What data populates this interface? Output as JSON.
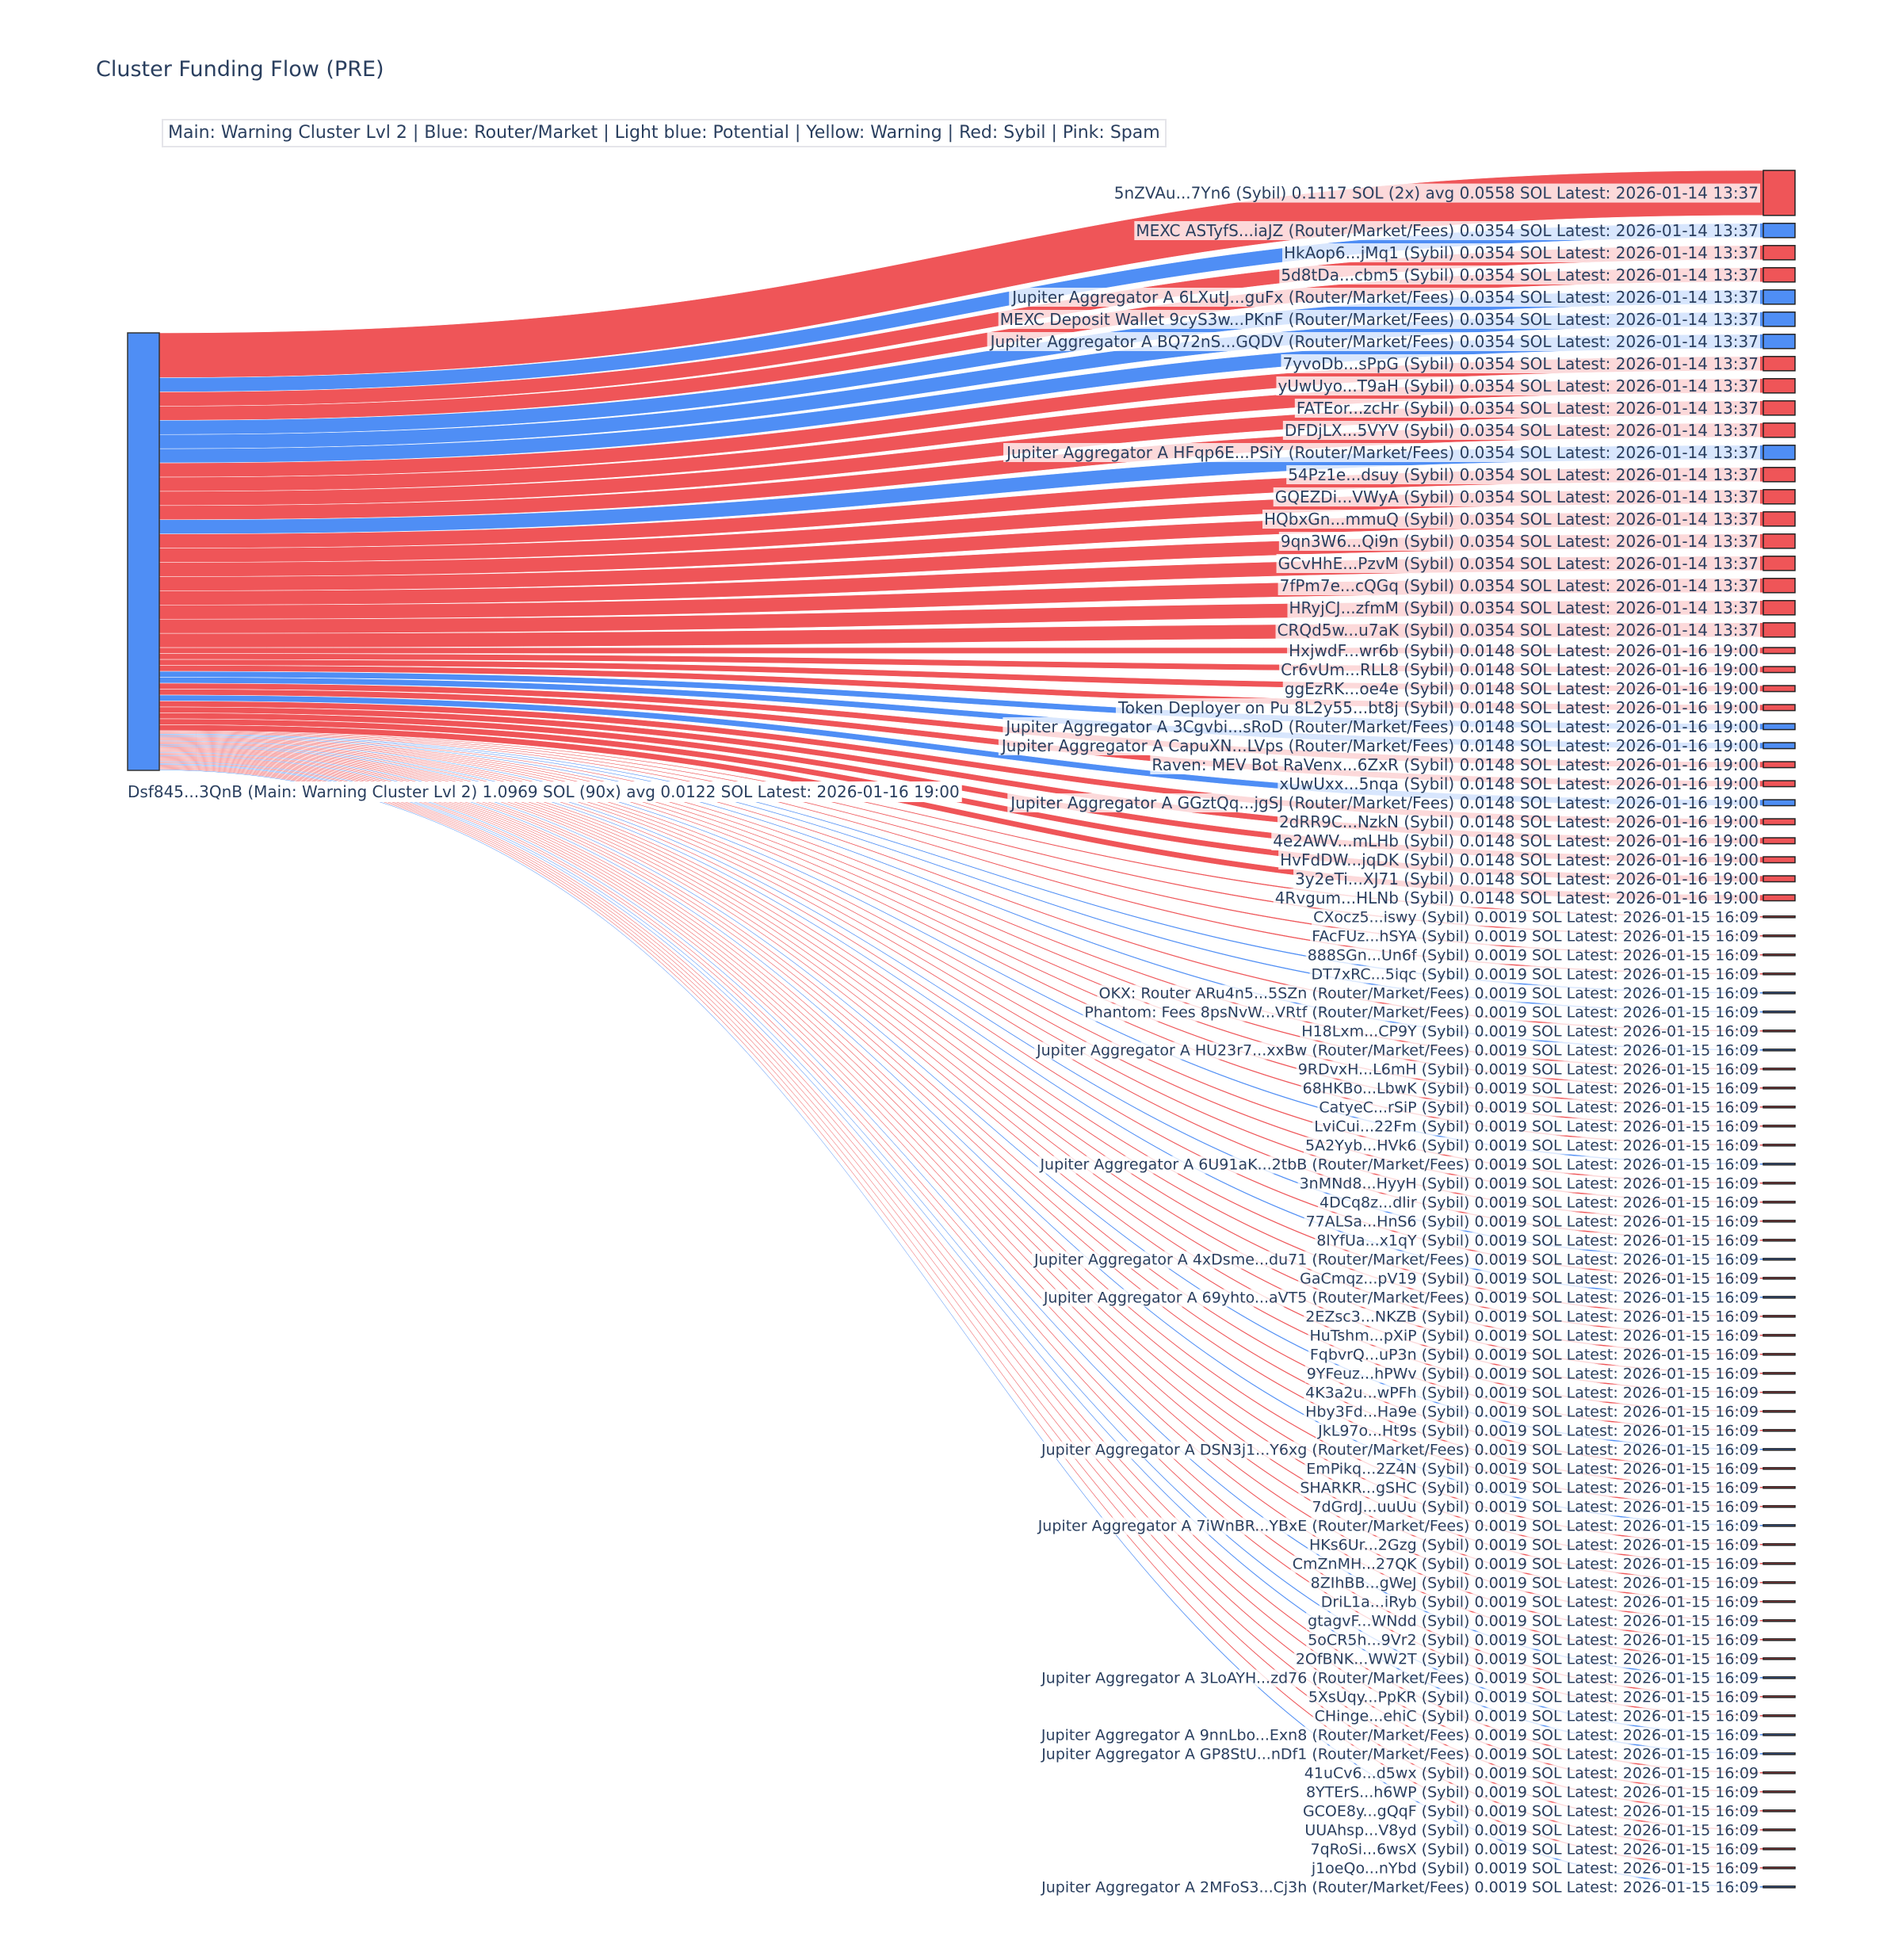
{
  "title": "Cluster Funding Flow (PRE)",
  "legend": "Main: Warning Cluster Lvl 2  |  Blue: Router/Market | Light blue: Potential | Yellow: Warning | Red: Sybil | Pink: Spam",
  "colors": {
    "router": "#4f8ef5",
    "sybil": "#ef5558",
    "main": "#4f8ef5",
    "label": "#2a3f5f"
  },
  "chart_data": {
    "type": "sankey",
    "title": "Cluster Funding Flow (PRE)",
    "source": {
      "name": "Dsf845...3QnB",
      "category": "Main: Warning Cluster Lvl 2",
      "label": "Dsf845...3QnB (Main: Warning Cluster Lvl 2) 1.0969 SOL (90x) avg 0.0122 SOL Latest: 2026-01-16 19:00",
      "total_sol": 1.0969,
      "count": 90,
      "avg_sol": 0.0122,
      "latest": "2026-01-16 19:00"
    },
    "targets": [
      {
        "label": "5nZVAu...7Yn6 (Sybil) 0.1117 SOL (2x) avg 0.0558 SOL Latest: 2026-01-14 13:37",
        "value": 0.1117,
        "type": "sybil"
      },
      {
        "label": "MEXC ASTyfS...iaJZ (Router/Market/Fees) 0.0354 SOL Latest: 2026-01-14 13:37",
        "value": 0.0354,
        "type": "router"
      },
      {
        "label": "HkAop6...jMq1 (Sybil) 0.0354 SOL Latest: 2026-01-14 13:37",
        "value": 0.0354,
        "type": "sybil"
      },
      {
        "label": "5d8tDa...cbm5 (Sybil) 0.0354 SOL Latest: 2026-01-14 13:37",
        "value": 0.0354,
        "type": "sybil"
      },
      {
        "label": "Jupiter Aggregator A 6LXutJ...guFx (Router/Market/Fees) 0.0354 SOL Latest: 2026-01-14 13:37",
        "value": 0.0354,
        "type": "router"
      },
      {
        "label": "MEXC Deposit Wallet 9cyS3w...PKnF (Router/Market/Fees) 0.0354 SOL Latest: 2026-01-14 13:37",
        "value": 0.0354,
        "type": "router"
      },
      {
        "label": "Jupiter Aggregator A BQ72nS...GQDV (Router/Market/Fees) 0.0354 SOL Latest: 2026-01-14 13:37",
        "value": 0.0354,
        "type": "router"
      },
      {
        "label": "7yvoDb...sPpG (Sybil) 0.0354 SOL Latest: 2026-01-14 13:37",
        "value": 0.0354,
        "type": "sybil"
      },
      {
        "label": "yUwUyo...T9aH (Sybil) 0.0354 SOL Latest: 2026-01-14 13:37",
        "value": 0.0354,
        "type": "sybil"
      },
      {
        "label": "FATEor...zcHr (Sybil) 0.0354 SOL Latest: 2026-01-14 13:37",
        "value": 0.0354,
        "type": "sybil"
      },
      {
        "label": "DFDjLX...5VYV (Sybil) 0.0354 SOL Latest: 2026-01-14 13:37",
        "value": 0.0354,
        "type": "sybil"
      },
      {
        "label": "Jupiter Aggregator A HFqp6E...PSiY (Router/Market/Fees) 0.0354 SOL Latest: 2026-01-14 13:37",
        "value": 0.0354,
        "type": "router"
      },
      {
        "label": "54Pz1e...dsuy (Sybil) 0.0354 SOL Latest: 2026-01-14 13:37",
        "value": 0.0354,
        "type": "sybil"
      },
      {
        "label": "GQEZDi...VWyA (Sybil) 0.0354 SOL Latest: 2026-01-14 13:37",
        "value": 0.0354,
        "type": "sybil"
      },
      {
        "label": "HQbxGn...mmuQ (Sybil) 0.0354 SOL Latest: 2026-01-14 13:37",
        "value": 0.0354,
        "type": "sybil"
      },
      {
        "label": "9qn3W6...Qi9n (Sybil) 0.0354 SOL Latest: 2026-01-14 13:37",
        "value": 0.0354,
        "type": "sybil"
      },
      {
        "label": "GCvHhE...PzvM (Sybil) 0.0354 SOL Latest: 2026-01-14 13:37",
        "value": 0.0354,
        "type": "sybil"
      },
      {
        "label": "7fPm7e...cQGq (Sybil) 0.0354 SOL Latest: 2026-01-14 13:37",
        "value": 0.0354,
        "type": "sybil"
      },
      {
        "label": "HRyjCJ...zfmM (Sybil) 0.0354 SOL Latest: 2026-01-14 13:37",
        "value": 0.0354,
        "type": "sybil"
      },
      {
        "label": "CRQd5w...u7aK (Sybil) 0.0354 SOL Latest: 2026-01-14 13:37",
        "value": 0.0354,
        "type": "sybil"
      },
      {
        "label": "HxjwdF...wr6b (Sybil) 0.0148 SOL Latest: 2026-01-16 19:00",
        "value": 0.0148,
        "type": "sybil"
      },
      {
        "label": "Cr6vUm...RLL8 (Sybil) 0.0148 SOL Latest: 2026-01-16 19:00",
        "value": 0.0148,
        "type": "sybil"
      },
      {
        "label": "ggEzRK...oe4e (Sybil) 0.0148 SOL Latest: 2026-01-16 19:00",
        "value": 0.0148,
        "type": "sybil"
      },
      {
        "label": "Token Deployer on Pu 8L2y55...bt8j (Sybil) 0.0148 SOL Latest: 2026-01-16 19:00",
        "value": 0.0148,
        "type": "sybil"
      },
      {
        "label": "Jupiter Aggregator A 3Cgvbi...sRoD (Router/Market/Fees) 0.0148 SOL Latest: 2026-01-16 19:00",
        "value": 0.0148,
        "type": "router"
      },
      {
        "label": "Jupiter Aggregator A CapuXN...LVps (Router/Market/Fees) 0.0148 SOL Latest: 2026-01-16 19:00",
        "value": 0.0148,
        "type": "router"
      },
      {
        "label": "Raven: MEV Bot RaVenx...6ZxR (Sybil) 0.0148 SOL Latest: 2026-01-16 19:00",
        "value": 0.0148,
        "type": "sybil"
      },
      {
        "label": "xUwUxx...5nqa (Sybil) 0.0148 SOL Latest: 2026-01-16 19:00",
        "value": 0.0148,
        "type": "sybil"
      },
      {
        "label": "Jupiter Aggregator A GGztQq...jgSJ (Router/Market/Fees) 0.0148 SOL Latest: 2026-01-16 19:00",
        "value": 0.0148,
        "type": "router"
      },
      {
        "label": "2dRR9C...NzkN (Sybil) 0.0148 SOL Latest: 2026-01-16 19:00",
        "value": 0.0148,
        "type": "sybil"
      },
      {
        "label": "4e2AWV...mLHb (Sybil) 0.0148 SOL Latest: 2026-01-16 19:00",
        "value": 0.0148,
        "type": "sybil"
      },
      {
        "label": "HvFdDW...jqDK (Sybil) 0.0148 SOL Latest: 2026-01-16 19:00",
        "value": 0.0148,
        "type": "sybil"
      },
      {
        "label": "3y2eTi...XJ71 (Sybil) 0.0148 SOL Latest: 2026-01-16 19:00",
        "value": 0.0148,
        "type": "sybil"
      },
      {
        "label": "4Rvgum...HLNb (Sybil) 0.0148 SOL Latest: 2026-01-16 19:00",
        "value": 0.0148,
        "type": "sybil"
      },
      {
        "label": "CXocz5...iswy (Sybil) 0.0019 SOL Latest: 2026-01-15 16:09",
        "value": 0.0019,
        "type": "sybil"
      },
      {
        "label": "FAcFUz...hSYA (Sybil) 0.0019 SOL Latest: 2026-01-15 16:09",
        "value": 0.0019,
        "type": "sybil"
      },
      {
        "label": "888SGn...Un6f (Sybil) 0.0019 SOL Latest: 2026-01-15 16:09",
        "value": 0.0019,
        "type": "sybil"
      },
      {
        "label": "DT7xRC...5iqc (Sybil) 0.0019 SOL Latest: 2026-01-15 16:09",
        "value": 0.0019,
        "type": "sybil"
      },
      {
        "label": "OKX: Router ARu4n5...5SZn (Router/Market/Fees) 0.0019 SOL Latest: 2026-01-15 16:09",
        "value": 0.0019,
        "type": "router"
      },
      {
        "label": "Phantom: Fees 8psNvW...VRtf (Router/Market/Fees) 0.0019 SOL Latest: 2026-01-15 16:09",
        "value": 0.0019,
        "type": "router"
      },
      {
        "label": "H18Lxm...CP9Y (Sybil) 0.0019 SOL Latest: 2026-01-15 16:09",
        "value": 0.0019,
        "type": "sybil"
      },
      {
        "label": "Jupiter Aggregator A HU23r7...xxBw (Router/Market/Fees) 0.0019 SOL Latest: 2026-01-15 16:09",
        "value": 0.0019,
        "type": "router"
      },
      {
        "label": "9RDvxH...L6mH (Sybil) 0.0019 SOL Latest: 2026-01-15 16:09",
        "value": 0.0019,
        "type": "sybil"
      },
      {
        "label": "68HKBo...LbwK (Sybil) 0.0019 SOL Latest: 2026-01-15 16:09",
        "value": 0.0019,
        "type": "sybil"
      },
      {
        "label": "CatyeC...rSiP (Sybil) 0.0019 SOL Latest: 2026-01-15 16:09",
        "value": 0.0019,
        "type": "sybil"
      },
      {
        "label": "LviCui...22Fm (Sybil) 0.0019 SOL Latest: 2026-01-15 16:09",
        "value": 0.0019,
        "type": "sybil"
      },
      {
        "label": "5A2Yyb...HVk6 (Sybil) 0.0019 SOL Latest: 2026-01-15 16:09",
        "value": 0.0019,
        "type": "sybil"
      },
      {
        "label": "Jupiter Aggregator A 6U91aK...2tbB (Router/Market/Fees) 0.0019 SOL Latest: 2026-01-15 16:09",
        "value": 0.0019,
        "type": "router"
      },
      {
        "label": "3nMNd8...HyyH (Sybil) 0.0019 SOL Latest: 2026-01-15 16:09",
        "value": 0.0019,
        "type": "sybil"
      },
      {
        "label": "4DCq8z...dlir (Sybil) 0.0019 SOL Latest: 2026-01-15 16:09",
        "value": 0.0019,
        "type": "sybil"
      },
      {
        "label": "77ALSa...HnS6 (Sybil) 0.0019 SOL Latest: 2026-01-15 16:09",
        "value": 0.0019,
        "type": "sybil"
      },
      {
        "label": "8lYfUa...x1qY (Sybil) 0.0019 SOL Latest: 2026-01-15 16:09",
        "value": 0.0019,
        "type": "sybil"
      },
      {
        "label": "Jupiter Aggregator A 4xDsme...du71 (Router/Market/Fees) 0.0019 SOL Latest: 2026-01-15 16:09",
        "value": 0.0019,
        "type": "router"
      },
      {
        "label": "GaCmqz...pV19 (Sybil) 0.0019 SOL Latest: 2026-01-15 16:09",
        "value": 0.0019,
        "type": "sybil"
      },
      {
        "label": "Jupiter Aggregator A 69yhto...aVT5 (Router/Market/Fees) 0.0019 SOL Latest: 2026-01-15 16:09",
        "value": 0.0019,
        "type": "router"
      },
      {
        "label": "2EZsc3...NKZB (Sybil) 0.0019 SOL Latest: 2026-01-15 16:09",
        "value": 0.0019,
        "type": "sybil"
      },
      {
        "label": "HuTshm...pXiP (Sybil) 0.0019 SOL Latest: 2026-01-15 16:09",
        "value": 0.0019,
        "type": "sybil"
      },
      {
        "label": "FqbvrQ...uP3n (Sybil) 0.0019 SOL Latest: 2026-01-15 16:09",
        "value": 0.0019,
        "type": "sybil"
      },
      {
        "label": "9YFeuz...hPWv (Sybil) 0.0019 SOL Latest: 2026-01-15 16:09",
        "value": 0.0019,
        "type": "sybil"
      },
      {
        "label": "4K3a2u...wPFh (Sybil) 0.0019 SOL Latest: 2026-01-15 16:09",
        "value": 0.0019,
        "type": "sybil"
      },
      {
        "label": "Hby3Fd...Ha9e (Sybil) 0.0019 SOL Latest: 2026-01-15 16:09",
        "value": 0.0019,
        "type": "sybil"
      },
      {
        "label": "JkL97o...Ht9s (Sybil) 0.0019 SOL Latest: 2026-01-15 16:09",
        "value": 0.0019,
        "type": "sybil"
      },
      {
        "label": "Jupiter Aggregator A DSN3j1...Y6xg (Router/Market/Fees) 0.0019 SOL Latest: 2026-01-15 16:09",
        "value": 0.0019,
        "type": "router"
      },
      {
        "label": "EmPikq...2Z4N (Sybil) 0.0019 SOL Latest: 2026-01-15 16:09",
        "value": 0.0019,
        "type": "sybil"
      },
      {
        "label": "SHARKR...gSHC (Sybil) 0.0019 SOL Latest: 2026-01-15 16:09",
        "value": 0.0019,
        "type": "sybil"
      },
      {
        "label": "7dGrdJ...uuUu (Sybil) 0.0019 SOL Latest: 2026-01-15 16:09",
        "value": 0.0019,
        "type": "sybil"
      },
      {
        "label": "Jupiter Aggregator A 7iWnBR...YBxE (Router/Market/Fees) 0.0019 SOL Latest: 2026-01-15 16:09",
        "value": 0.0019,
        "type": "router"
      },
      {
        "label": "HKs6Ur...2Gzg (Sybil) 0.0019 SOL Latest: 2026-01-15 16:09",
        "value": 0.0019,
        "type": "sybil"
      },
      {
        "label": "CmZnMH...27QK (Sybil) 0.0019 SOL Latest: 2026-01-15 16:09",
        "value": 0.0019,
        "type": "sybil"
      },
      {
        "label": "8ZIhBB...gWeJ (Sybil) 0.0019 SOL Latest: 2026-01-15 16:09",
        "value": 0.0019,
        "type": "sybil"
      },
      {
        "label": "DriL1a...iRyb (Sybil) 0.0019 SOL Latest: 2026-01-15 16:09",
        "value": 0.0019,
        "type": "sybil"
      },
      {
        "label": "gtagvF...WNdd (Sybil) 0.0019 SOL Latest: 2026-01-15 16:09",
        "value": 0.0019,
        "type": "sybil"
      },
      {
        "label": "5oCR5h...9Vr2 (Sybil) 0.0019 SOL Latest: 2026-01-15 16:09",
        "value": 0.0019,
        "type": "sybil"
      },
      {
        "label": "2OfBNK...WW2T (Sybil) 0.0019 SOL Latest: 2026-01-15 16:09",
        "value": 0.0019,
        "type": "sybil"
      },
      {
        "label": "Jupiter Aggregator A 3LoAYH...zd76 (Router/Market/Fees) 0.0019 SOL Latest: 2026-01-15 16:09",
        "value": 0.0019,
        "type": "router"
      },
      {
        "label": "5XsUqy...PpKR (Sybil) 0.0019 SOL Latest: 2026-01-15 16:09",
        "value": 0.0019,
        "type": "sybil"
      },
      {
        "label": "CHinge...ehiC (Sybil) 0.0019 SOL Latest: 2026-01-15 16:09",
        "value": 0.0019,
        "type": "sybil"
      },
      {
        "label": "Jupiter Aggregator A 9nnLbo...Exn8 (Router/Market/Fees) 0.0019 SOL Latest: 2026-01-15 16:09",
        "value": 0.0019,
        "type": "router"
      },
      {
        "label": "Jupiter Aggregator A GP8StU...nDf1 (Router/Market/Fees) 0.0019 SOL Latest: 2026-01-15 16:09",
        "value": 0.0019,
        "type": "router"
      },
      {
        "label": "41uCv6...d5wx (Sybil) 0.0019 SOL Latest: 2026-01-15 16:09",
        "value": 0.0019,
        "type": "sybil"
      },
      {
        "label": "8YTErS...h6WP (Sybil) 0.0019 SOL Latest: 2026-01-15 16:09",
        "value": 0.0019,
        "type": "sybil"
      },
      {
        "label": "GCOE8y...gQqF (Sybil) 0.0019 SOL Latest: 2026-01-15 16:09",
        "value": 0.0019,
        "type": "sybil"
      },
      {
        "label": "UUAhsp...V8yd (Sybil) 0.0019 SOL Latest: 2026-01-15 16:09",
        "value": 0.0019,
        "type": "sybil"
      },
      {
        "label": "7qRoSi...6wsX (Sybil) 0.0019 SOL Latest: 2026-01-15 16:09",
        "value": 0.0019,
        "type": "sybil"
      },
      {
        "label": "j1oeQo...nYbd (Sybil) 0.0019 SOL Latest: 2026-01-15 16:09",
        "value": 0.0019,
        "type": "sybil"
      },
      {
        "label": "Jupiter Aggregator A 2MFoS3...Cj3h (Router/Market/Fees) 0.0019 SOL Latest: 2026-01-15 16:09",
        "value": 0.0019,
        "type": "router"
      }
    ]
  }
}
